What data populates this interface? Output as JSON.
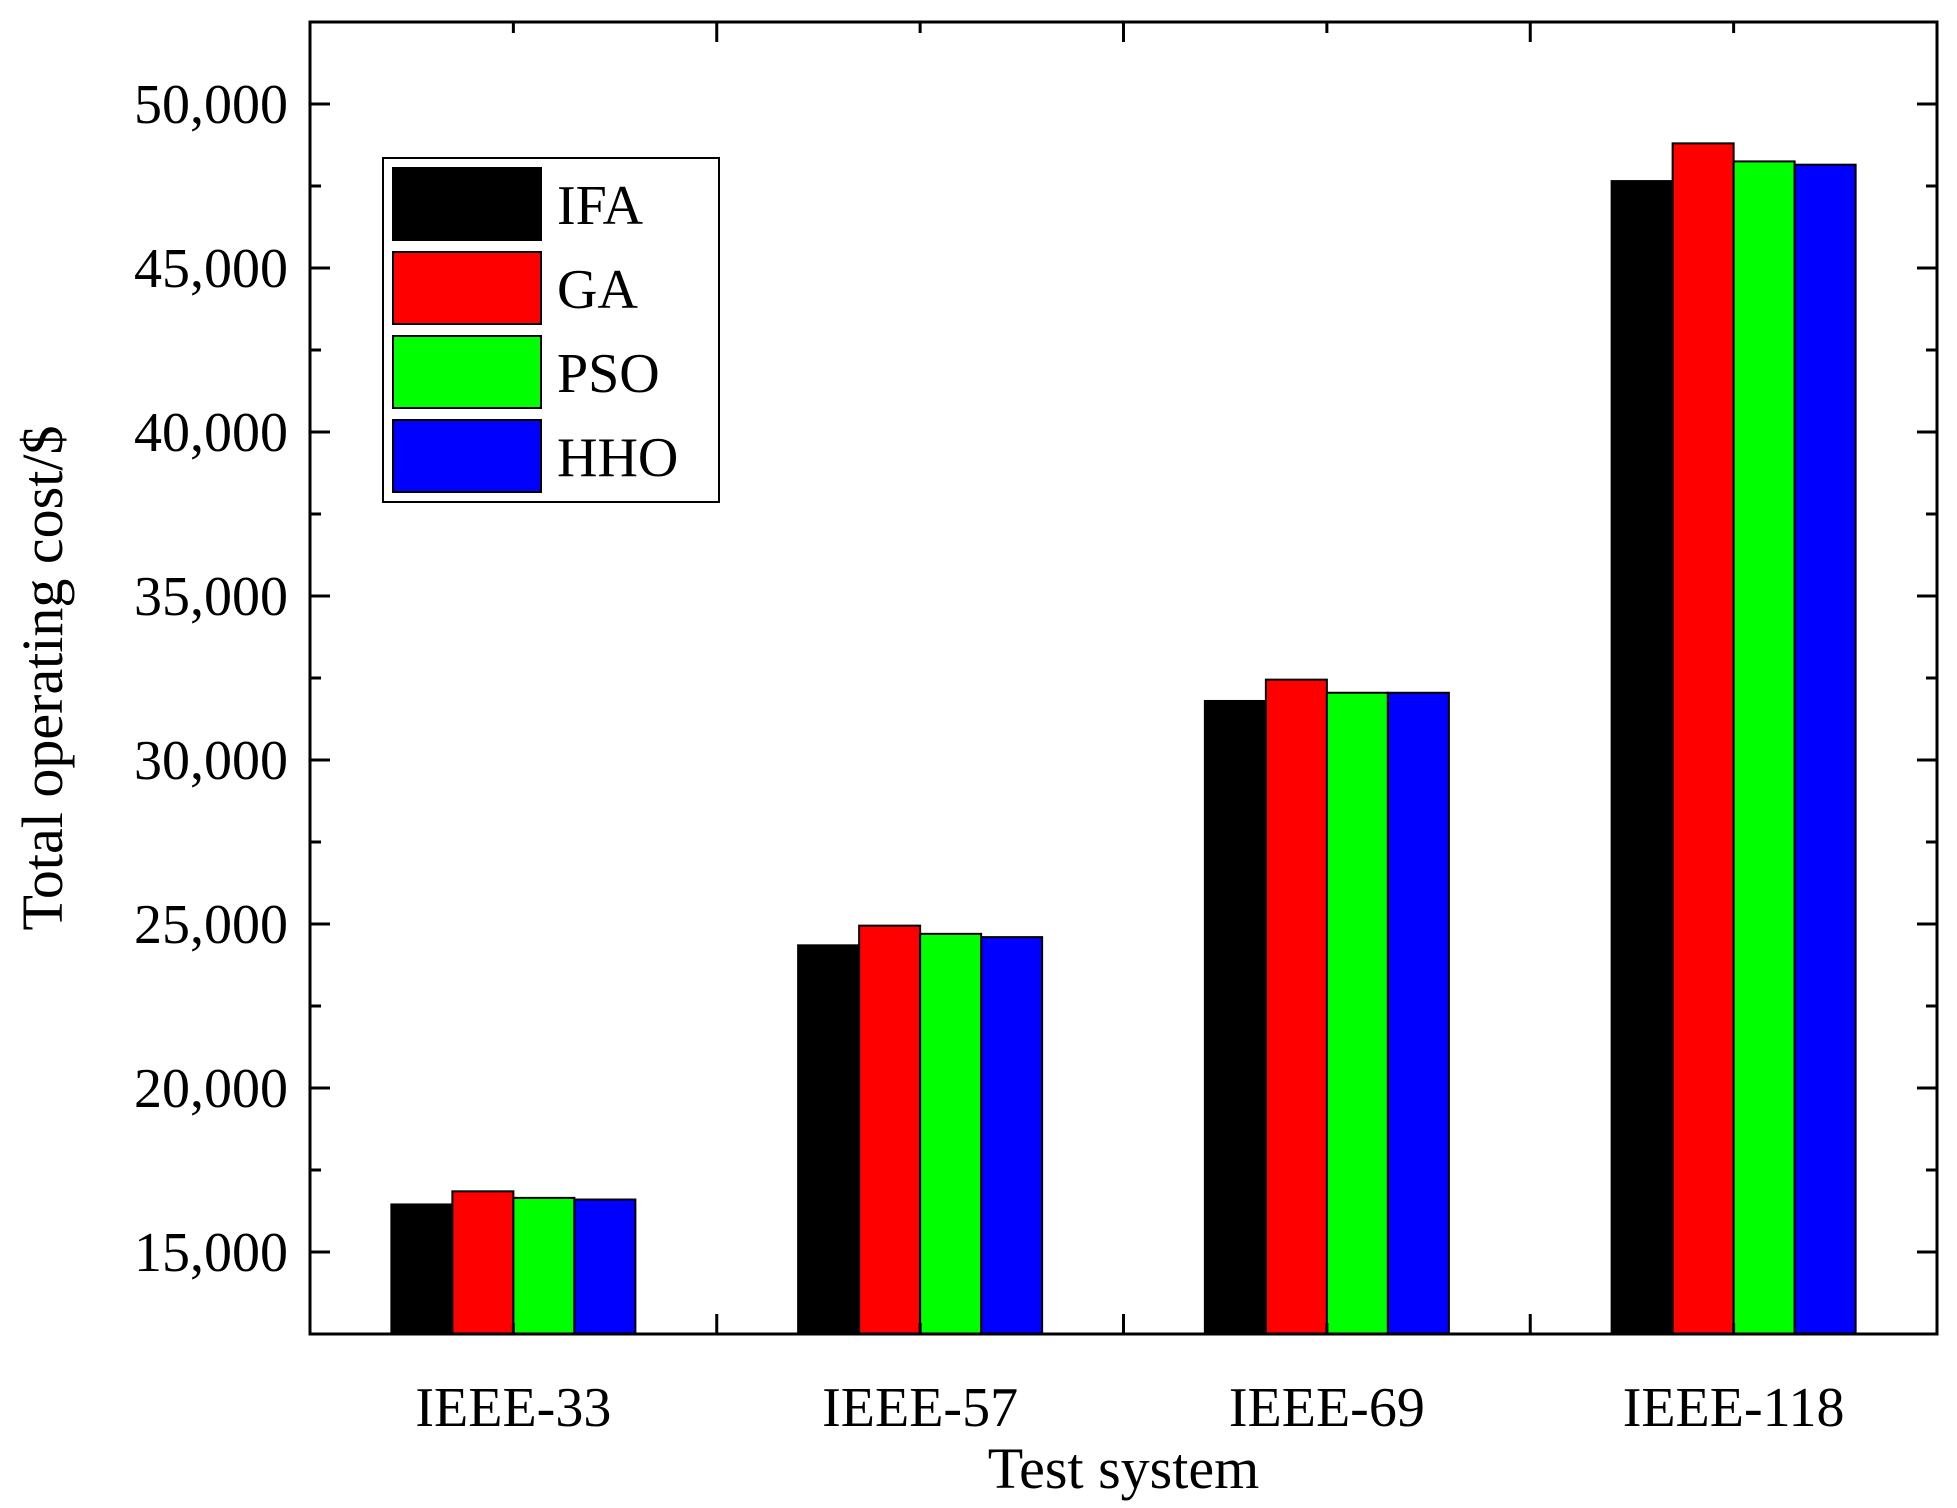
{
  "chart_data": {
    "type": "bar",
    "title": "",
    "xlabel": "Test system",
    "ylabel": "Total operating cost/$",
    "categories": [
      "IEEE-33",
      "IEEE-57",
      "IEEE-69",
      "IEEE-118"
    ],
    "ylim": [
      12500,
      52500
    ],
    "y_ticks": [
      15000,
      20000,
      25000,
      30000,
      35000,
      40000,
      45000,
      50000
    ],
    "y_tick_labels": [
      "15,000",
      "20,000",
      "25,000",
      "30,000",
      "35,000",
      "40,000",
      "45,000",
      "50,000"
    ],
    "grid": false,
    "legend_position": "top-left",
    "series": [
      {
        "name": "IFA",
        "color": "#000000",
        "values": [
          16450,
          24350,
          31800,
          47650
        ]
      },
      {
        "name": "GA",
        "color": "#ff0000",
        "values": [
          16850,
          24950,
          32450,
          48800
        ]
      },
      {
        "name": "PSO",
        "color": "#00ff00",
        "values": [
          16650,
          24700,
          32050,
          48250
        ]
      },
      {
        "name": "HHO",
        "color": "#0000ff",
        "values": [
          16600,
          24600,
          32050,
          48150
        ]
      }
    ]
  }
}
